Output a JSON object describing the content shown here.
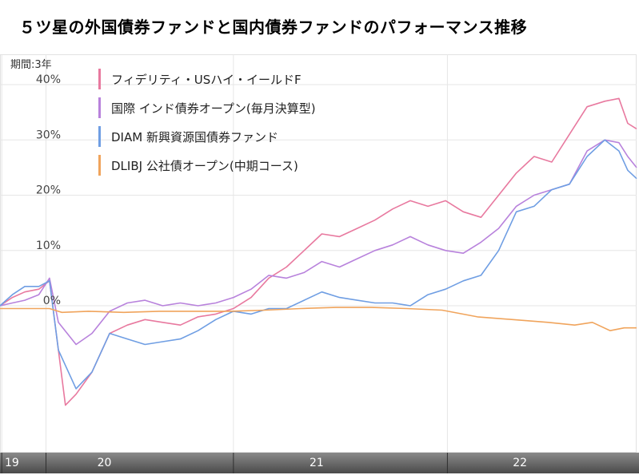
{
  "title": "５ツ星の外国債券ファンドと国内債券ファンドのパフォーマンス推移",
  "period_label": "期間:3年",
  "chart_data": {
    "type": "line",
    "ylabel": "",
    "ylim": [
      -26,
      44
    ],
    "yticks": [
      {
        "value": 40,
        "label": "40%"
      },
      {
        "value": 30,
        "label": "30%"
      },
      {
        "value": 20,
        "label": "20%"
      },
      {
        "value": 10,
        "label": "10%"
      },
      {
        "value": 0,
        "label": "0%"
      }
    ],
    "x_range": [
      0,
      36
    ],
    "x_axis_labels": [
      {
        "pos": 0.0,
        "label": "19"
      },
      {
        "pos": 5.5,
        "label": "20"
      },
      {
        "pos": 17.5,
        "label": "21"
      },
      {
        "pos": 29.0,
        "label": "22"
      }
    ],
    "x_axis_dividers": [
      0.1,
      2.6,
      13.2,
      25.3
    ],
    "grid": true,
    "legend_position": "top-left",
    "series": [
      {
        "name": "フィデリティ・USハイ・イールドF",
        "color": "#e8799f",
        "points": [
          [
            0,
            0
          ],
          [
            0.7,
            1.5
          ],
          [
            1.4,
            2.5
          ],
          [
            2.2,
            3
          ],
          [
            2.8,
            4.5
          ],
          [
            3.3,
            -8
          ],
          [
            3.7,
            -18
          ],
          [
            4.3,
            -16
          ],
          [
            5.2,
            -12
          ],
          [
            6.2,
            -5
          ],
          [
            7.2,
            -3.5
          ],
          [
            8.2,
            -2.5
          ],
          [
            9.2,
            -3
          ],
          [
            10.2,
            -3.5
          ],
          [
            11.2,
            -2
          ],
          [
            12.2,
            -1.5
          ],
          [
            13.2,
            -0.5
          ],
          [
            14.2,
            1.5
          ],
          [
            15.2,
            5
          ],
          [
            16.2,
            7
          ],
          [
            17.2,
            10
          ],
          [
            18.2,
            13
          ],
          [
            19.2,
            12.5
          ],
          [
            20.2,
            14
          ],
          [
            21.2,
            15.5
          ],
          [
            22.2,
            17.5
          ],
          [
            23.2,
            19
          ],
          [
            24.2,
            18
          ],
          [
            25.2,
            19
          ],
          [
            26.2,
            17
          ],
          [
            27.2,
            16
          ],
          [
            28.2,
            20
          ],
          [
            29.2,
            24
          ],
          [
            30.2,
            27
          ],
          [
            31.2,
            26
          ],
          [
            32.2,
            31
          ],
          [
            33.2,
            36
          ],
          [
            34.2,
            37
          ],
          [
            35.0,
            37.5
          ],
          [
            35.5,
            33
          ],
          [
            36,
            32
          ]
        ]
      },
      {
        "name": "国際 インド債券オープン(毎月決算型)",
        "color": "#b882dc",
        "points": [
          [
            0,
            0
          ],
          [
            0.7,
            0.5
          ],
          [
            1.4,
            1
          ],
          [
            2.2,
            2
          ],
          [
            2.8,
            5
          ],
          [
            3.3,
            -3
          ],
          [
            4.3,
            -7
          ],
          [
            5.2,
            -5
          ],
          [
            6.2,
            -1
          ],
          [
            7.2,
            0.5
          ],
          [
            8.2,
            1
          ],
          [
            9.2,
            0
          ],
          [
            10.2,
            0.5
          ],
          [
            11.2,
            0
          ],
          [
            12.2,
            0.5
          ],
          [
            13.2,
            1.5
          ],
          [
            14.2,
            3
          ],
          [
            15.2,
            5.5
          ],
          [
            16.2,
            5
          ],
          [
            17.2,
            6
          ],
          [
            18.2,
            8
          ],
          [
            19.2,
            7
          ],
          [
            20.2,
            8.5
          ],
          [
            21.2,
            10
          ],
          [
            22.2,
            11
          ],
          [
            23.2,
            12.5
          ],
          [
            24.2,
            11
          ],
          [
            25.2,
            10
          ],
          [
            26.2,
            9.5
          ],
          [
            27.2,
            11.5
          ],
          [
            28.2,
            14
          ],
          [
            29.2,
            18
          ],
          [
            30.2,
            20
          ],
          [
            31.2,
            21
          ],
          [
            32.2,
            22
          ],
          [
            33.2,
            28
          ],
          [
            34.2,
            30
          ],
          [
            35.0,
            29.5
          ],
          [
            35.5,
            27
          ],
          [
            36,
            25
          ]
        ]
      },
      {
        "name": "DIAM 新興資源国債券ファンド",
        "color": "#6f9ee3",
        "points": [
          [
            0,
            0
          ],
          [
            0.7,
            2
          ],
          [
            1.4,
            3.5
          ],
          [
            2.2,
            3.5
          ],
          [
            2.8,
            4.5
          ],
          [
            3.3,
            -8
          ],
          [
            4.3,
            -15
          ],
          [
            5.2,
            -12
          ],
          [
            6.2,
            -5
          ],
          [
            7.2,
            -6
          ],
          [
            8.2,
            -7
          ],
          [
            9.2,
            -6.5
          ],
          [
            10.2,
            -6
          ],
          [
            11.2,
            -4.5
          ],
          [
            12.2,
            -2.5
          ],
          [
            13.2,
            -1
          ],
          [
            14.2,
            -1.5
          ],
          [
            15.2,
            -0.5
          ],
          [
            16.2,
            -0.5
          ],
          [
            17.2,
            1
          ],
          [
            18.2,
            2.5
          ],
          [
            19.2,
            1.5
          ],
          [
            20.2,
            1
          ],
          [
            21.2,
            0.5
          ],
          [
            22.2,
            0.5
          ],
          [
            23.2,
            0
          ],
          [
            24.2,
            2
          ],
          [
            25.2,
            3
          ],
          [
            26.2,
            4.5
          ],
          [
            27.2,
            5.5
          ],
          [
            28.2,
            10
          ],
          [
            29.2,
            17
          ],
          [
            30.2,
            18
          ],
          [
            31.2,
            21
          ],
          [
            32.2,
            22
          ],
          [
            33.2,
            27
          ],
          [
            34.2,
            30
          ],
          [
            35.0,
            28
          ],
          [
            35.5,
            24.5
          ],
          [
            36,
            23
          ]
        ]
      },
      {
        "name": "DLIBJ 公社債オープン(中期コース)",
        "color": "#f0a45c",
        "points": [
          [
            0,
            -0.5
          ],
          [
            1,
            -0.5
          ],
          [
            2,
            -0.5
          ],
          [
            2.8,
            -0.5
          ],
          [
            3.5,
            -1.2
          ],
          [
            5,
            -1
          ],
          [
            7,
            -1.2
          ],
          [
            9,
            -1
          ],
          [
            11,
            -1
          ],
          [
            13,
            -1
          ],
          [
            15,
            -0.8
          ],
          [
            17,
            -0.5
          ],
          [
            19,
            -0.3
          ],
          [
            21,
            -0.3
          ],
          [
            23,
            -0.5
          ],
          [
            25,
            -0.8
          ],
          [
            27,
            -2
          ],
          [
            29,
            -2.5
          ],
          [
            31,
            -3
          ],
          [
            32.5,
            -3.5
          ],
          [
            33.5,
            -3
          ],
          [
            34.5,
            -4.5
          ],
          [
            35.3,
            -4
          ],
          [
            36,
            -4
          ]
        ]
      }
    ]
  }
}
